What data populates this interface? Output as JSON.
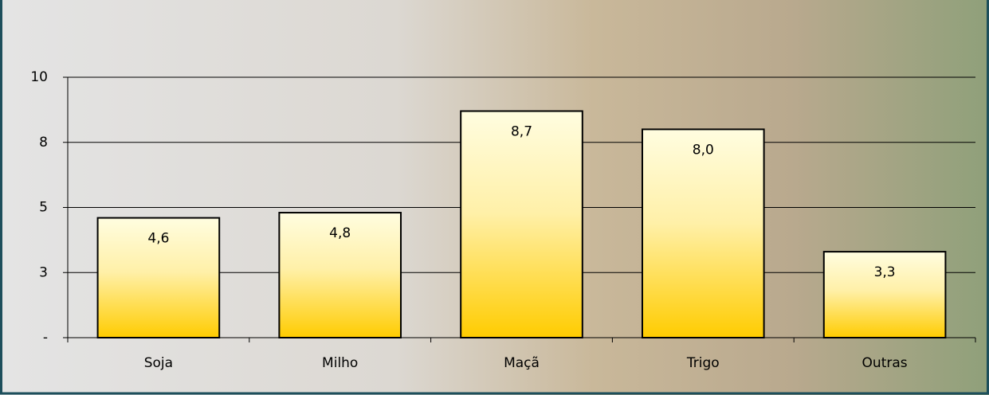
{
  "chart_data": {
    "type": "bar",
    "categories": [
      "Soja",
      "Milho",
      "Maçã",
      "Trigo",
      "Outras"
    ],
    "values": [
      4.6,
      4.8,
      8.7,
      8.0,
      3.3
    ],
    "value_labels": [
      "4,6",
      "4,8",
      "8,7",
      "8,0",
      "3,3"
    ],
    "ylim": [
      0,
      10
    ],
    "yticks": [
      {
        "value": 0,
        "label": "-"
      },
      {
        "value": 2.5,
        "label": "3"
      },
      5,
      {
        "value": 7.5,
        "label": "8"
      },
      10
    ],
    "grid": true
  }
}
